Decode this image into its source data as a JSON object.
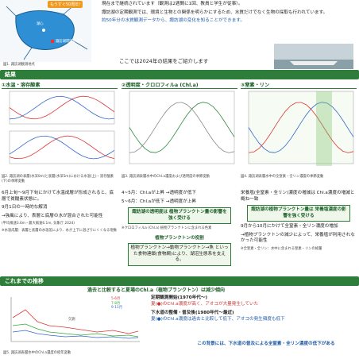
{
  "map": {
    "banner": "もうすぐ50周年!",
    "center_label": "湖心",
    "lab_label": "諏訪湖環境研究所",
    "caption": "図1. 諏訪湖観測地点"
  },
  "intro": {
    "bullets": [
      "現在まで継続されています（観測は2週間に1回、教員と学生が従事）。",
      "諏訪湖の定期観測では、環境と生物との関係を明らかにするため、水質だけでなく生物の採取も行われています。",
      "約50年分の水質観測データから、諏訪湖の変化を知ることができます。"
    ],
    "lead": "ここでは2024年の結果をご紹介します"
  },
  "results": {
    "title": "結果",
    "panels": [
      {
        "header": "①水温・溶存酸素",
        "caption": "図2. 諏訪湖の表層(水深0m)と底層(水深5m)における水温(上)・溶存酸素(下)の季節変動",
        "texts": [
          "6月上旬〜9月下旬にかけて水温成層が形成されると、底層で貧酸素状態に。",
          "9月1日の一時的な解消",
          "→強風により、表層と底層の水が混合された可能性",
          "(平均風速3.6m・最大風速6.1m, 気象庁 2024)",
          "※水温成層：表層と底層の水温差により、水が上下に混ざりにくくなる現象"
        ]
      },
      {
        "header": "②透明度・クロロフィルa (Chl.a)",
        "caption": "図3. 諏訪湖表層水中のChl.a濃度および透明度の季節変動",
        "texts": [
          "4~5月：Chl.aが上昇 →透明度が低下",
          "5~6月：Chl.aが低下 →透明度が上昇",
          "諏訪湖の透明度は 植物プランクトン量の影響を強く受ける",
          "※クロロフィルa (Chl.a) 植物プランクトンに含まれる色素",
          "植物プランクトンの役割",
          "植物プランクトン→動物プランクトン→魚 といった食物連鎖(食物網)により、湖沼生態系を支える。"
        ]
      },
      {
        "header": "③窒素・リン",
        "caption": "図4. 諏訪湖表層水中の全窒素・全リン濃度の季節変動",
        "texts": [
          "栄養塩(全窒素・全リン)濃度の増減は Chl.a濃度の増減と概ね一致",
          "諏訪湖の植物プランクトン量は 栄養塩濃度の影響を強く受ける",
          "9月から10月にかけて全窒素・全リン濃度の増加",
          "→植物プランクトンの減少によって、栄養塩が利用されなかった可能性",
          "※全窒素・全リン：水中に含まれる窒素・リンの総量"
        ]
      }
    ]
  },
  "history": {
    "title": "これまでの推移",
    "headline": "過去と比較すると夏場のChl.a（植物プランクトン）は減少傾向",
    "legend": [
      "5-6月",
      "7-8月",
      "9-11月"
    ],
    "missing": "欠測",
    "caption": "図5. 諏訪湖表層水中のChl.a濃度の経年変動",
    "points": [
      "定期観測開始(1970年代〜)",
      "夏(●)のChl.a濃度が高く、アオコが大量発生していた",
      "下水道の整備・普及後(1980年代〜最近)",
      "夏(●)のChl.a濃度は過去と比較して低下、アオコの発生頻度も低下"
    ],
    "conclusion": "この背景には、下水道の普及による全窒素・全リン濃度の低下がある"
  }
}
